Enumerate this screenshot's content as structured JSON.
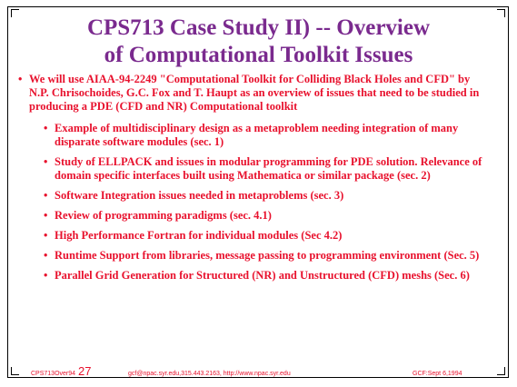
{
  "slide": {
    "title_line1": "CPS713 Case Study II) -- Overview",
    "title_line2": "of Computational Toolkit Issues",
    "bullet_char": "•",
    "main_bullet": "We will use AIAA-94-2249 \"Computational Toolkit for Colliding Black Holes and CFD\" by N.P. Chrisochoides, G.C. Fox and T. Haupt as an overview of issues that need to be studied in producing a PDE (CFD and NR) Computational toolkit",
    "sub_bullets": [
      "Example of multidisciplinary design as a metaproblem needing integration of many disparate software modules (sec. 1)",
      "Study of ELLPACK and issues in modular programming for PDE solution. Relevance of domain specific interfaces built using Mathematica or similar package (sec. 2)",
      "Software Integration issues needed in metaproblems (sec. 3)",
      "Review of programming paradigms (sec. 4.1)",
      "High Performance Fortran for individual modules (Sec 4.2)",
      "Runtime Support from libraries, message passing to programming environment (Sec. 5)",
      "Parallel Grid Generation for Structured (NR) and Unstructured (CFD) meshs (Sec. 6)"
    ]
  },
  "footer": {
    "file": "CPS713Over94",
    "page_number": "27",
    "contact": "gcf@npac.syr.edu,315.443.2163, http://www.npac.syr.edu",
    "date": "GCF:Sept 6,1994"
  },
  "colors": {
    "title": "#7a2a8e",
    "text": "#e8112d",
    "frame": "#000000"
  }
}
